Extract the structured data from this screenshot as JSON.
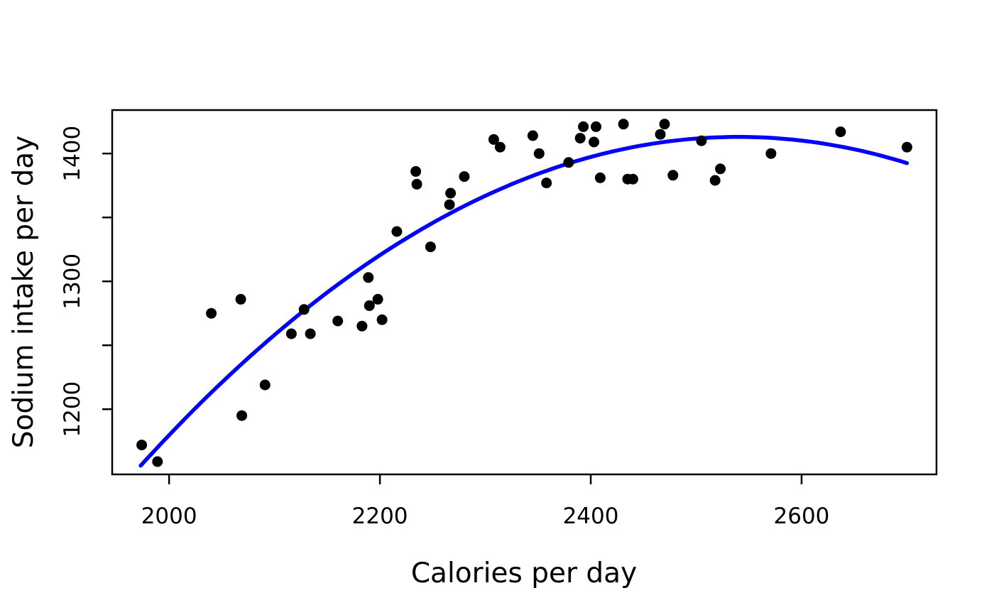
{
  "chart_data": {
    "type": "scatter",
    "title": "",
    "xlabel": "Calories per day",
    "ylabel": "Sodium intake per day",
    "xlim": [
      1946,
      2728
    ],
    "ylim": [
      1149,
      1434
    ],
    "x_ticks": [
      2000,
      2200,
      2400,
      2600
    ],
    "y_ticks_labeled": [
      1200,
      1300,
      1400
    ],
    "y_ticks_unlabeled": [
      1250,
      1350
    ],
    "grid": "off",
    "legend": "none",
    "points": [
      [
        1974,
        1172
      ],
      [
        1989,
        1159
      ],
      [
        2040,
        1275
      ],
      [
        2068,
        1286
      ],
      [
        2069,
        1195
      ],
      [
        2091,
        1219
      ],
      [
        2116,
        1259
      ],
      [
        2128,
        1278
      ],
      [
        2134,
        1259
      ],
      [
        2160,
        1269
      ],
      [
        2183,
        1265
      ],
      [
        2189,
        1303
      ],
      [
        2190,
        1281
      ],
      [
        2198,
        1286
      ],
      [
        2202,
        1270
      ],
      [
        2216,
        1339
      ],
      [
        2234,
        1386
      ],
      [
        2235,
        1376
      ],
      [
        2248,
        1327
      ],
      [
        2266,
        1360
      ],
      [
        2267,
        1369
      ],
      [
        2280,
        1382
      ],
      [
        2308,
        1411
      ],
      [
        2314,
        1405
      ],
      [
        2345,
        1414
      ],
      [
        2351,
        1400
      ],
      [
        2358,
        1377
      ],
      [
        2379,
        1393
      ],
      [
        2390,
        1412
      ],
      [
        2393,
        1421
      ],
      [
        2403,
        1409
      ],
      [
        2405,
        1421
      ],
      [
        2409,
        1381
      ],
      [
        2431,
        1423
      ],
      [
        2435,
        1380
      ],
      [
        2440,
        1380
      ],
      [
        2466,
        1415
      ],
      [
        2470,
        1423
      ],
      [
        2478,
        1383
      ],
      [
        2505,
        1410
      ],
      [
        2518,
        1379
      ],
      [
        2523,
        1388
      ],
      [
        2571,
        1400
      ],
      [
        2637,
        1417
      ],
      [
        2700,
        1405
      ]
    ],
    "fit_curve": {
      "name": "quadratic-fit-line",
      "model": "y = vertex_y + a * (x - vertex_x)^2",
      "a": -0.0008,
      "vertex_x": 2540,
      "vertex_y": 1413,
      "x_start": 1973,
      "x_end": 2700
    },
    "colors": {
      "points": "#000000",
      "curve": "#0000FF",
      "axis": "#000000",
      "background": "#FFFFFF"
    }
  }
}
